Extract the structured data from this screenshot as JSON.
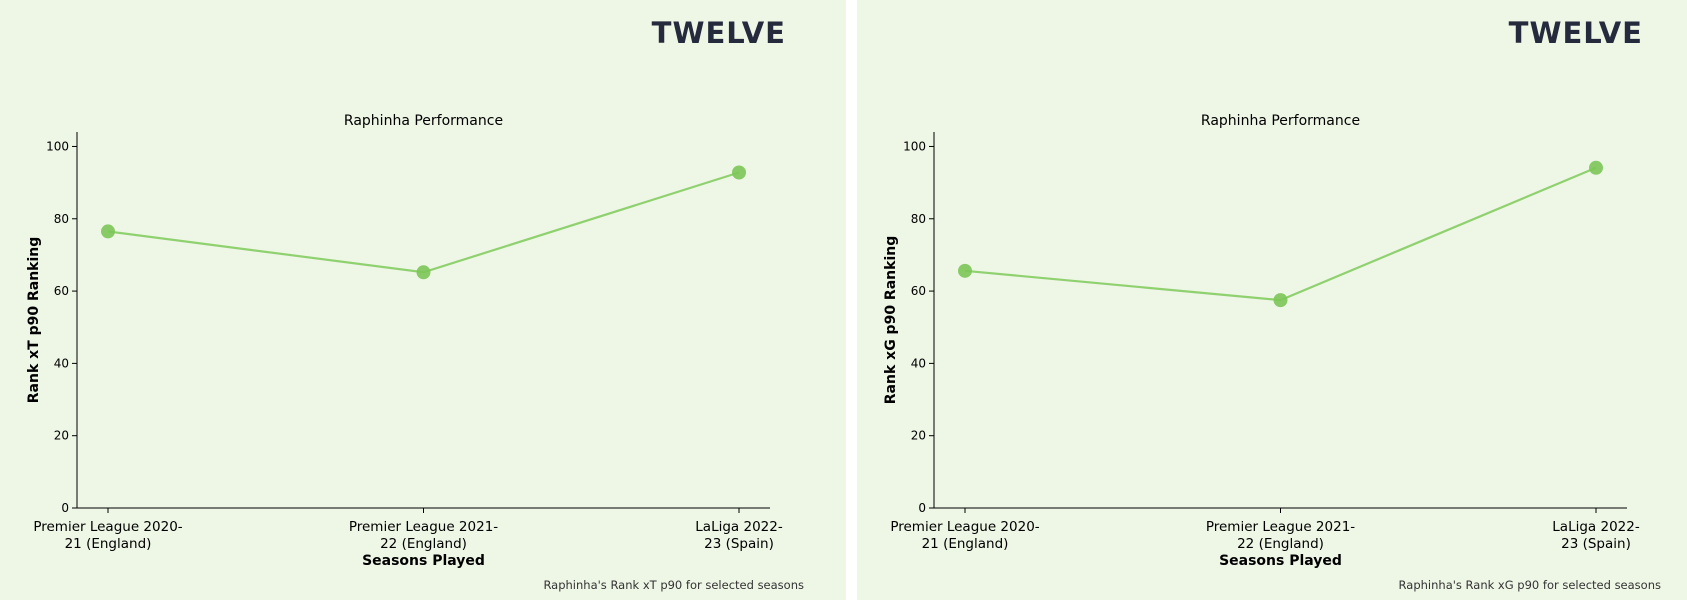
{
  "logo_text": "TWELVE",
  "colors": {
    "background": "#eef6e6",
    "line": "#8fd16f",
    "marker": "#7cc658",
    "logo": "#262a3d"
  },
  "chart_data": [
    {
      "type": "line",
      "title": "Raphinha Performance",
      "xlabel": "Seasons Played",
      "ylabel": "Rank xT p90 Ranking",
      "categories": [
        [
          "Premier League 2020-",
          "21 (England)"
        ],
        [
          "Premier League 2021-",
          "22 (England)"
        ],
        [
          "LaLiga 2022-",
          "23 (Spain)"
        ]
      ],
      "values": [
        76.5,
        65.2,
        92.8
      ],
      "ylim": [
        0,
        104
      ],
      "yticks": [
        0,
        20,
        40,
        60,
        80,
        100
      ],
      "grid": false,
      "caption": "Raphinha's Rank xT p90 for selected seasons"
    },
    {
      "type": "line",
      "title": "Raphinha Performance",
      "xlabel": "Seasons Played",
      "ylabel": "Rank xG p90 Ranking",
      "categories": [
        [
          "Premier League 2020-",
          "21 (England)"
        ],
        [
          "Premier League 2021-",
          "22 (England)"
        ],
        [
          "LaLiga 2022-",
          "23 (Spain)"
        ]
      ],
      "values": [
        65.6,
        57.5,
        94.1
      ],
      "ylim": [
        0,
        104
      ],
      "yticks": [
        0,
        20,
        40,
        60,
        80,
        100
      ],
      "grid": false,
      "caption": "Raphinha's Rank xG p90 for selected seasons"
    }
  ]
}
